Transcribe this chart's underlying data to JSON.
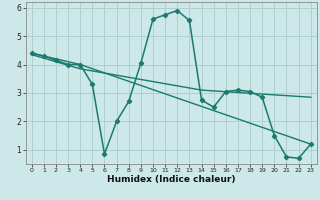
{
  "xlabel": "Humidex (Indice chaleur)",
  "xlim": [
    -0.5,
    23.5
  ],
  "ylim": [
    0.5,
    6.2
  ],
  "xticks": [
    0,
    1,
    2,
    3,
    4,
    5,
    6,
    7,
    8,
    9,
    10,
    11,
    12,
    13,
    14,
    15,
    16,
    17,
    18,
    19,
    20,
    21,
    22,
    23
  ],
  "yticks": [
    1,
    2,
    3,
    4,
    5,
    6
  ],
  "background_color": "#cce8e8",
  "grid_color": "#b0d0d0",
  "line_color": "#1a7a6e",
  "series1_x": [
    0,
    1,
    2,
    3,
    4,
    5,
    6,
    7,
    8,
    9,
    10,
    11,
    12,
    13,
    14,
    15,
    16,
    17,
    18,
    19,
    20,
    21,
    22,
    23
  ],
  "series1_y": [
    4.4,
    4.3,
    4.15,
    4.0,
    4.0,
    3.3,
    0.85,
    2.0,
    2.7,
    4.05,
    5.6,
    5.75,
    5.9,
    5.55,
    2.75,
    2.5,
    3.05,
    3.1,
    3.05,
    2.85,
    1.5,
    0.75,
    0.7,
    1.2
  ],
  "series2_x": [
    0,
    4,
    23
  ],
  "series2_y": [
    4.4,
    4.0,
    1.2
  ],
  "series3_x": [
    0,
    4,
    14,
    23
  ],
  "series3_y": [
    4.35,
    3.85,
    3.1,
    2.85
  ]
}
